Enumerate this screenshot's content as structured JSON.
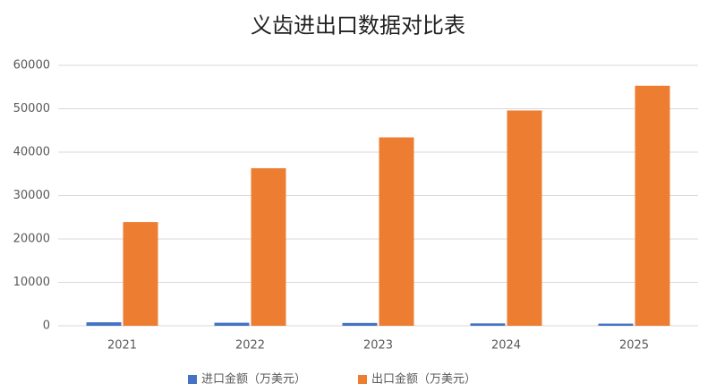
{
  "chart_data": {
    "type": "bar",
    "title": "义齿进出口数据对比表",
    "categories": [
      "2021",
      "2022",
      "2023",
      "2024",
      "2025"
    ],
    "series": [
      {
        "name": "进口金额（万美元）",
        "color": "#4472c4",
        "values": [
          800,
          700,
          650,
          550,
          500
        ]
      },
      {
        "name": "出口金额（万美元）",
        "color": "#ed7d31",
        "values": [
          23900,
          36300,
          43400,
          49600,
          55300
        ]
      }
    ],
    "ylim": [
      0,
      60000
    ],
    "yticks": [
      0,
      10000,
      20000,
      30000,
      40000,
      50000,
      60000
    ],
    "grid": true,
    "legend": "bottom"
  }
}
